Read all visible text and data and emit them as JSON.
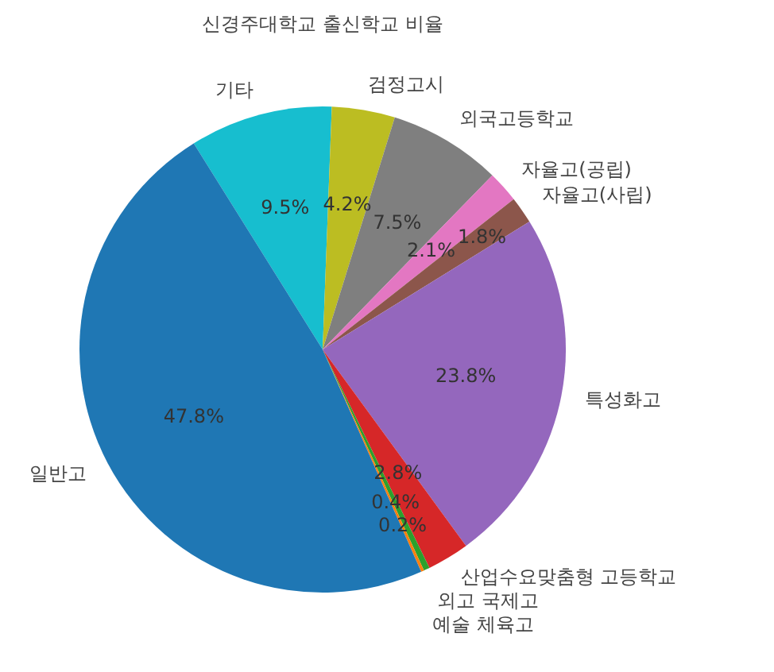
{
  "chart_data": {
    "type": "pie",
    "title": "신경주대학교 출신학교 비율",
    "categories": [
      "일반고",
      "예술 체육고",
      "외고 국제고",
      "산업수요맞춤형 고등학교",
      "특성화고",
      "자율고(사립)",
      "자율고(공립)",
      "외국고등학교",
      "검정고시",
      "기타"
    ],
    "values": [
      47.8,
      0.2,
      0.4,
      2.8,
      23.8,
      1.8,
      2.1,
      7.5,
      4.2,
      9.5
    ],
    "colors": [
      "#1f77b4",
      "#ff7f0e",
      "#2ca02c",
      "#d62728",
      "#9467bd",
      "#8c564b",
      "#e377c2",
      "#7f7f7f",
      "#bcbd22",
      "#17becf"
    ],
    "value_labels": [
      "47.8%",
      "0.2%",
      "0.4%",
      "2.8%",
      "23.8%",
      "1.8%",
      "2.1%",
      "7.5%",
      "4.2%",
      "9.5%"
    ],
    "legend": false
  }
}
